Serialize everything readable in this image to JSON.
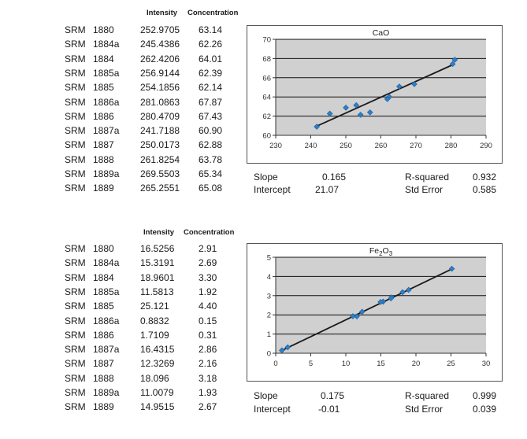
{
  "chart_data": [
    {
      "type": "table",
      "headers": [
        "Intensity",
        "Concentration"
      ],
      "rows": [
        {
          "prefix": "SRM",
          "id": "1880",
          "intensity": "252.9705",
          "concentration": "63.14"
        },
        {
          "prefix": "SRM",
          "id": "1884a",
          "intensity": "245.4386",
          "concentration": "62.26"
        },
        {
          "prefix": "SRM",
          "id": "1884",
          "intensity": "262.4206",
          "concentration": "64.01"
        },
        {
          "prefix": "SRM",
          "id": "1885a",
          "intensity": "256.9144",
          "concentration": "62.39"
        },
        {
          "prefix": "SRM",
          "id": "1885",
          "intensity": "254.1856",
          "concentration": "62.14"
        },
        {
          "prefix": "SRM",
          "id": "1886a",
          "intensity": "281.0863",
          "concentration": "67.87"
        },
        {
          "prefix": "SRM",
          "id": "1886",
          "intensity": "280.4709",
          "concentration": "67.43"
        },
        {
          "prefix": "SRM",
          "id": "1887a",
          "intensity": "241.7188",
          "concentration": "60.90"
        },
        {
          "prefix": "SRM",
          "id": "1887",
          "intensity": "250.0173",
          "concentration": "62.88"
        },
        {
          "prefix": "SRM",
          "id": "1888",
          "intensity": "261.8254",
          "concentration": "63.78"
        },
        {
          "prefix": "SRM",
          "id": "1889a",
          "intensity": "269.5503",
          "concentration": "65.34"
        },
        {
          "prefix": "SRM",
          "id": "1889",
          "intensity": "265.2551",
          "concentration": "65.08"
        }
      ]
    },
    {
      "type": "scatter",
      "title": "CaO",
      "xlim": [
        230,
        290
      ],
      "ylim": [
        60,
        70
      ],
      "xticks": [
        230,
        240,
        250,
        260,
        270,
        280,
        290
      ],
      "yticks": [
        60,
        62,
        64,
        66,
        68,
        70
      ],
      "grid": true,
      "series": [
        {
          "x": [
            252.9705,
            245.4386,
            262.4206,
            256.9144,
            254.1856,
            281.0863,
            280.4709,
            241.7188,
            250.0173,
            261.8254,
            269.5503,
            265.2551
          ],
          "y": [
            63.14,
            62.26,
            64.01,
            62.39,
            62.14,
            67.87,
            67.43,
            60.9,
            62.88,
            63.78,
            65.34,
            65.08
          ]
        }
      ],
      "trendline": {
        "slope": 0.165,
        "intercept": 21.07,
        "x_range": [
          241.7188,
          281.0863
        ]
      },
      "colors": {
        "marker": "#2e7fc7",
        "line": "#1a1a1a",
        "plot_bg": "#d0d0d0"
      },
      "stats": {
        "slope_label": "Slope",
        "slope": "0.165",
        "intercept_label": "Intercept",
        "intercept": "21.07",
        "r2_label": "R-squared",
        "r2": "0.932",
        "se_label": "Std Error",
        "se": "0.585"
      }
    },
    {
      "type": "table",
      "headers": [
        "Intensity",
        "Concentration"
      ],
      "rows": [
        {
          "prefix": "SRM",
          "id": "1880",
          "intensity": "16.5256",
          "concentration": "2.91"
        },
        {
          "prefix": "SRM",
          "id": "1884a",
          "intensity": "15.3191",
          "concentration": "2.69"
        },
        {
          "prefix": "SRM",
          "id": "1884",
          "intensity": "18.9601",
          "concentration": "3.30"
        },
        {
          "prefix": "SRM",
          "id": "1885a",
          "intensity": "11.5813",
          "concentration": "1.92"
        },
        {
          "prefix": "SRM",
          "id": "1885",
          "intensity": "25.121",
          "concentration": "4.40"
        },
        {
          "prefix": "SRM",
          "id": "1886a",
          "intensity": "0.8832",
          "concentration": "0.15"
        },
        {
          "prefix": "SRM",
          "id": "1886",
          "intensity": "1.7109",
          "concentration": "0.31"
        },
        {
          "prefix": "SRM",
          "id": "1887a",
          "intensity": "16.4315",
          "concentration": "2.86"
        },
        {
          "prefix": "SRM",
          "id": "1887",
          "intensity": "12.3269",
          "concentration": "2.16"
        },
        {
          "prefix": "SRM",
          "id": "1888",
          "intensity": "18.096",
          "concentration": "3.18"
        },
        {
          "prefix": "SRM",
          "id": "1889a",
          "intensity": "11.0079",
          "concentration": "1.93"
        },
        {
          "prefix": "SRM",
          "id": "1889",
          "intensity": "14.9515",
          "concentration": "2.67"
        }
      ]
    },
    {
      "type": "scatter",
      "title": "Fe2O3",
      "title_parts": {
        "base": "Fe",
        "sub1": "2",
        "mid": "O",
        "sub2": "3"
      },
      "xlim": [
        0,
        30
      ],
      "ylim": [
        0,
        5
      ],
      "xticks": [
        0,
        5,
        10,
        15,
        20,
        25,
        30
      ],
      "yticks": [
        0,
        1,
        2,
        3,
        4,
        5
      ],
      "grid": true,
      "series": [
        {
          "x": [
            16.5256,
            15.3191,
            18.9601,
            11.5813,
            25.121,
            0.8832,
            1.7109,
            16.4315,
            12.3269,
            18.096,
            11.0079,
            14.9515
          ],
          "y": [
            2.91,
            2.69,
            3.3,
            1.92,
            4.4,
            0.15,
            0.31,
            2.86,
            2.16,
            3.18,
            1.93,
            2.67
          ]
        }
      ],
      "trendline": {
        "slope": 0.175,
        "intercept": -0.01,
        "x_range": [
          0.8832,
          25.121
        ]
      },
      "colors": {
        "marker": "#2e7fc7",
        "line": "#1a1a1a",
        "plot_bg": "#d0d0d0"
      },
      "stats": {
        "slope_label": "Slope",
        "slope": "0.175",
        "intercept_label": "Intercept",
        "intercept": "-0.01",
        "r2_label": "R-squared",
        "r2": "0.999",
        "se_label": "Std Error",
        "se": "0.039"
      }
    }
  ]
}
